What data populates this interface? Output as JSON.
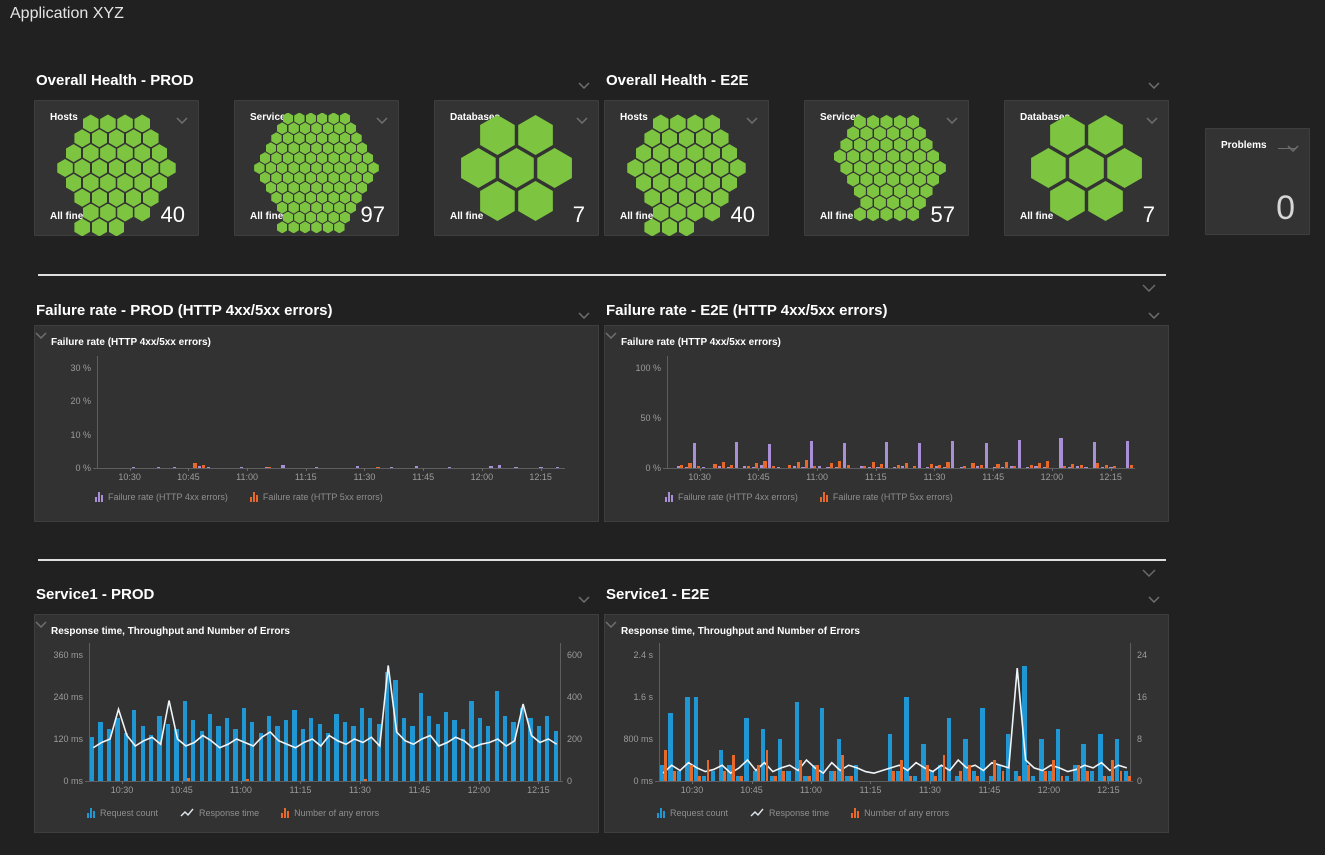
{
  "page": {
    "title": "Application XYZ"
  },
  "colors": {
    "green": "#7dc540",
    "blue": "#1f97d4",
    "orange": "#e8682a",
    "purple": "#a98fd6",
    "line": "#eef4f8"
  },
  "health_sections": [
    {
      "header": "Overall Health - PROD",
      "tiles": [
        {
          "label": "Hosts",
          "status": "All fine",
          "count": "40",
          "hex_count": 40,
          "hex_size": 9
        },
        {
          "label": "Services",
          "status": "All fine",
          "count": "97",
          "hex_count": 97,
          "hex_size": 6
        },
        {
          "label": "Databases",
          "status": "All fine",
          "count": "7",
          "hex_count": 7,
          "hex_size": 20
        }
      ]
    },
    {
      "header": "Overall Health - E2E",
      "tiles": [
        {
          "label": "Hosts",
          "status": "All fine",
          "count": "40",
          "hex_count": 40,
          "hex_size": 9
        },
        {
          "label": "Services",
          "status": "All fine",
          "count": "57",
          "hex_count": 57,
          "hex_size": 7
        },
        {
          "label": "Databases",
          "status": "All fine",
          "count": "7",
          "hex_count": 7,
          "hex_size": 20
        }
      ]
    }
  ],
  "problems_tile": {
    "label": "Problems",
    "value": "0"
  },
  "chart_data": [
    {
      "id": "failure-prod",
      "section_header": "Failure rate - PROD (HTTP 4xx/5xx errors)",
      "title": "Failure rate (HTTP 4xx/5xx errors)",
      "type": "bar",
      "grid": false,
      "legend_position": "bottom",
      "x_ticks": [
        "10:30",
        "10:45",
        "11:00",
        "11:15",
        "11:30",
        "11:45",
        "12:00",
        "12:15"
      ],
      "y_left": {
        "ticks": [
          "30 %",
          "20 %",
          "10 %",
          "0 %"
        ],
        "lim": [
          0,
          30
        ]
      },
      "series": [
        {
          "name": "Failure rate (HTTP 4xx errors)",
          "type": "bar",
          "axis": "left",
          "color_key": "purple",
          "values": [
            0,
            0,
            0,
            0,
            0.3,
            0,
            0,
            0.4,
            0,
            0.3,
            0,
            0,
            0.5,
            0.3,
            0,
            0,
            0,
            0.4,
            0,
            0,
            0.3,
            0,
            0.8,
            0,
            0,
            0,
            0.4,
            0,
            0,
            0,
            0,
            0.5,
            0,
            0,
            0,
            0.3,
            0,
            0,
            0.6,
            0,
            0,
            0,
            0.3,
            0,
            0,
            0,
            0,
            0.5,
            0.9,
            0,
            0.4,
            0,
            0,
            0.3,
            0,
            0.4
          ]
        },
        {
          "name": "Failure rate (HTTP 5xx errors)",
          "type": "bar",
          "axis": "left",
          "color_key": "orange",
          "values": [
            0,
            0,
            0,
            0,
            0,
            0,
            0,
            0,
            0,
            0,
            0,
            1.6,
            0.8,
            0,
            0,
            0,
            0,
            0,
            0,
            0,
            0.4,
            0,
            0,
            0,
            0,
            0,
            0,
            0,
            0,
            0,
            0,
            0,
            0,
            0.3,
            0,
            0,
            0,
            0,
            0,
            0,
            0,
            0,
            0,
            0,
            0,
            0,
            0,
            0,
            0,
            0,
            0,
            0,
            0,
            0,
            0,
            0
          ]
        }
      ]
    },
    {
      "id": "failure-e2e",
      "section_header": "Failure rate - E2E (HTTP 4xx/5xx errors)",
      "title": "Failure rate (HTTP 4xx/5xx errors)",
      "type": "bar",
      "grid": false,
      "legend_position": "bottom",
      "x_ticks": [
        "10:30",
        "10:45",
        "11:00",
        "11:15",
        "11:30",
        "11:45",
        "12:00",
        "12:15"
      ],
      "y_left": {
        "ticks": [
          "100 %",
          "50 %",
          "0 %"
        ],
        "lim": [
          0,
          100
        ]
      },
      "series": [
        {
          "name": "Failure rate (HTTP 4xx errors)",
          "type": "bar",
          "axis": "left",
          "color_key": "purple",
          "values": [
            0,
            2,
            1,
            25,
            1,
            0,
            2,
            1,
            26,
            2,
            1,
            3,
            24,
            1,
            0,
            2,
            1,
            27,
            2,
            1,
            1,
            25,
            0,
            2,
            1,
            1,
            26,
            1,
            2,
            0,
            25,
            1,
            2,
            1,
            27,
            1,
            0,
            2,
            25,
            1,
            1,
            2,
            28,
            1,
            2,
            1,
            0,
            30,
            1,
            2,
            1,
            26,
            1,
            1,
            0,
            27
          ]
        },
        {
          "name": "Failure rate (HTTP 5xx errors)",
          "type": "bar",
          "axis": "left",
          "color_key": "orange",
          "values": [
            0,
            3,
            5,
            2,
            0,
            4,
            6,
            3,
            0,
            2,
            5,
            7,
            2,
            0,
            3,
            6,
            8,
            2,
            0,
            5,
            7,
            3,
            0,
            2,
            6,
            4,
            0,
            3,
            5,
            2,
            0,
            4,
            3,
            6,
            0,
            2,
            5,
            3,
            0,
            4,
            6,
            2,
            0,
            3,
            5,
            7,
            0,
            2,
            4,
            3,
            0,
            5,
            3,
            2,
            0,
            3
          ]
        }
      ]
    },
    {
      "id": "service-prod",
      "section_header": "Service1 - PROD",
      "title": "Response time, Throughput and Number of Errors",
      "type": "bar+line",
      "grid": false,
      "legend_position": "bottom",
      "x_ticks": [
        "10:30",
        "10:45",
        "11:00",
        "11:15",
        "11:30",
        "11:45",
        "12:00",
        "12:15"
      ],
      "y_left": {
        "ticks": [
          "360 ms",
          "240 ms",
          "120 ms",
          "0 ms"
        ],
        "lim": [
          0,
          360
        ]
      },
      "y_right": {
        "ticks": [
          "600",
          "400",
          "200",
          "0"
        ],
        "lim": [
          0,
          600
        ]
      },
      "series": [
        {
          "name": "Request count",
          "type": "bar",
          "axis": "right",
          "color_key": "blue",
          "values": [
            210,
            280,
            250,
            300,
            230,
            340,
            260,
            220,
            310,
            270,
            250,
            380,
            290,
            240,
            320,
            260,
            300,
            250,
            350,
            280,
            230,
            310,
            260,
            290,
            340,
            250,
            300,
            270,
            230,
            320,
            280,
            260,
            350,
            300,
            270,
            520,
            480,
            300,
            260,
            420,
            310,
            270,
            330,
            290,
            250,
            380,
            300,
            260,
            430,
            310,
            280,
            350,
            300,
            260,
            310,
            240
          ]
        },
        {
          "name": "Response time",
          "type": "line",
          "axis": "left",
          "color_key": "line",
          "values": [
            95,
            110,
            120,
            205,
            130,
            100,
            115,
            125,
            105,
            230,
            120,
            100,
            110,
            130,
            115,
            95,
            105,
            120,
            110,
            100,
            125,
            140,
            115,
            105,
            95,
            110,
            120,
            100,
            130,
            115,
            105,
            120,
            110,
            125,
            100,
            330,
            140,
            115,
            105,
            120,
            130,
            100,
            110,
            125,
            115,
            95,
            105,
            110,
            120,
            100,
            115,
            220,
            130,
            110,
            120,
            105
          ]
        },
        {
          "name": "Number of any errors",
          "type": "bar",
          "axis": "right",
          "color_key": "orange",
          "values": [
            0,
            0,
            0,
            0,
            0,
            0,
            0,
            0,
            0,
            0,
            0,
            14,
            0,
            0,
            0,
            0,
            0,
            0,
            10,
            0,
            0,
            0,
            0,
            0,
            0,
            0,
            0,
            0,
            0,
            0,
            0,
            0,
            9,
            0,
            0,
            0,
            0,
            0,
            0,
            0,
            0,
            0,
            0,
            0,
            0,
            0,
            0,
            0,
            0,
            0,
            0,
            0,
            0,
            0,
            0,
            0
          ]
        }
      ]
    },
    {
      "id": "service-e2e",
      "section_header": "Service1 - E2E",
      "title": "Response time, Throughput and Number of Errors",
      "type": "bar+line",
      "grid": false,
      "legend_position": "bottom",
      "x_ticks": [
        "10:30",
        "10:45",
        "11:00",
        "11:15",
        "11:30",
        "11:45",
        "12:00",
        "12:15"
      ],
      "y_left": {
        "ticks": [
          "2.4 s",
          "1.6 s",
          "800 ms",
          "0 ms"
        ],
        "lim": [
          0,
          2400
        ]
      },
      "y_right": {
        "ticks": [
          "24",
          "16",
          "8",
          "0"
        ],
        "lim": [
          0,
          24
        ]
      },
      "series": [
        {
          "name": "Request count",
          "type": "bar",
          "axis": "right",
          "color_key": "blue",
          "values": [
            3,
            13,
            2,
            16,
            16,
            1,
            2,
            6,
            3,
            1,
            12,
            2,
            10,
            1,
            8,
            2,
            15,
            1,
            3,
            14,
            2,
            8,
            1,
            3,
            0,
            0,
            0,
            9,
            2,
            16,
            1,
            7,
            2,
            3,
            12,
            1,
            8,
            2,
            14,
            1,
            3,
            9,
            2,
            22,
            1,
            8,
            2,
            10,
            1,
            3,
            7,
            2,
            9,
            1,
            8,
            2
          ]
        },
        {
          "name": "Response time",
          "type": "line",
          "axis": "left",
          "color_key": "line",
          "values": [
            150,
            300,
            200,
            350,
            250,
            180,
            220,
            300,
            150,
            250,
            400,
            200,
            350,
            180,
            250,
            300,
            200,
            400,
            250,
            150,
            350,
            200,
            300,
            250,
            180,
            150,
            200,
            250,
            300,
            200,
            350,
            250,
            180,
            300,
            200,
            400,
            250,
            300,
            200,
            350,
            300,
            250,
            2150,
            400,
            250,
            200,
            300,
            250,
            180,
            220,
            300,
            250,
            350,
            200,
            300,
            250
          ]
        },
        {
          "name": "Number of any errors",
          "type": "bar",
          "axis": "right",
          "color_key": "orange",
          "values": [
            6,
            2,
            0,
            3,
            1,
            4,
            0,
            2,
            5,
            1,
            0,
            3,
            6,
            1,
            2,
            0,
            4,
            1,
            3,
            0,
            2,
            5,
            1,
            0,
            0,
            0,
            0,
            2,
            4,
            1,
            0,
            3,
            1,
            5,
            0,
            2,
            3,
            1,
            0,
            4,
            2,
            0,
            1,
            3,
            0,
            2,
            4,
            1,
            0,
            3,
            2,
            0,
            1,
            4,
            2,
            1
          ]
        }
      ]
    }
  ]
}
